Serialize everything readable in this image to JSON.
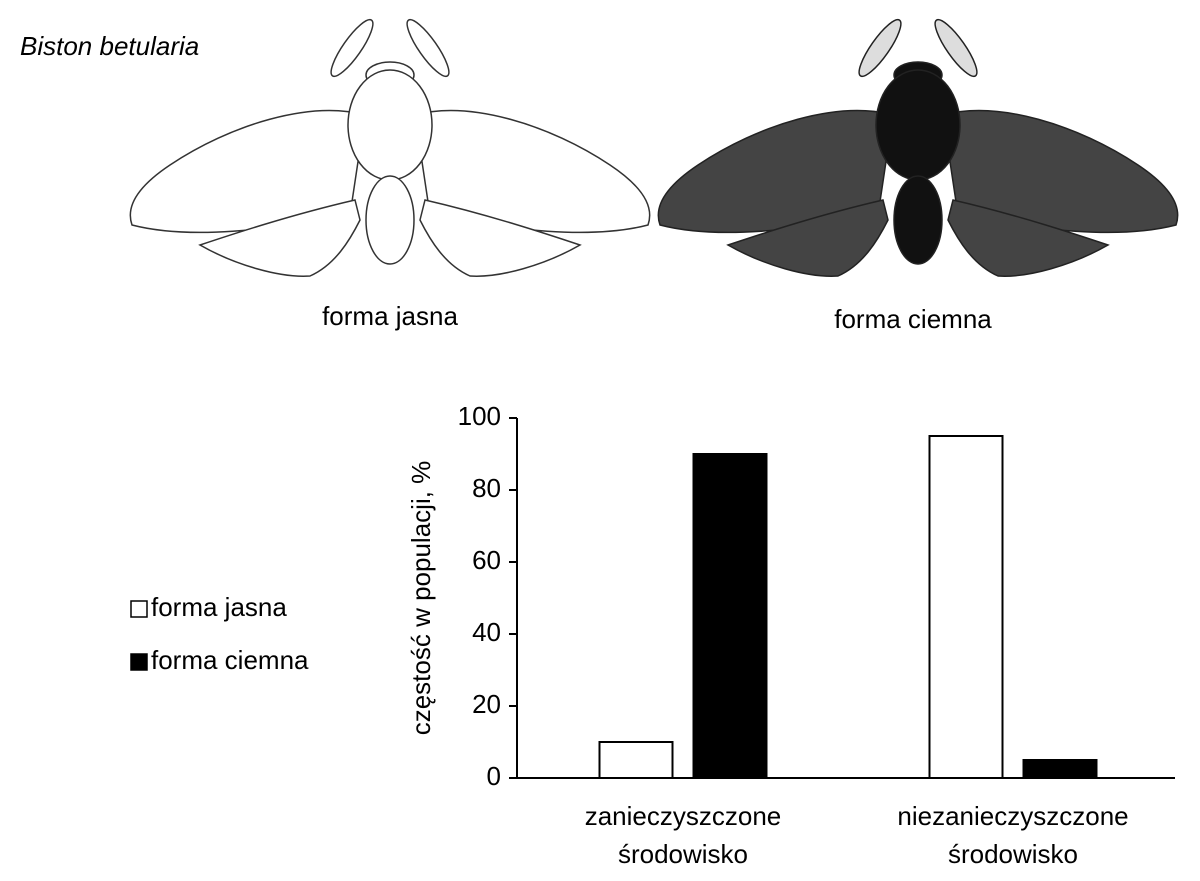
{
  "illustration": {
    "species": "Biston betularia",
    "captions": [
      "forma jasna",
      "forma ciemna"
    ]
  },
  "chart_data": {
    "type": "bar",
    "ylabel": "częstość w populacji, %",
    "categories": [
      "zanieczyszczone środowisko",
      "niezanieczyszczone środowisko"
    ],
    "series": [
      {
        "name": "forma jasna",
        "color": "#ffffff",
        "values": [
          10,
          95
        ]
      },
      {
        "name": "forma ciemna",
        "color": "#000000",
        "values": [
          90,
          5
        ]
      }
    ],
    "ylim": [
      0,
      100
    ],
    "yticks": [
      0,
      20,
      40,
      60,
      80,
      100
    ],
    "grid": false,
    "legend": "left"
  }
}
